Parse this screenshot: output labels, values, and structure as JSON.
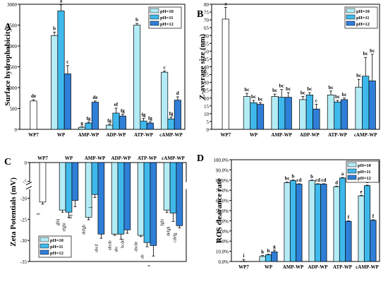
{
  "colors": {
    "ph10": "#b4ecf6",
    "ph11": "#3fb9ec",
    "ph12": "#2f7fd8",
    "wp7": "#ffffff",
    "edge": "#000000"
  },
  "legend": [
    "pH=10",
    "pH=11",
    "pH=12"
  ],
  "chart_data": [
    {
      "panel": "A",
      "type": "bar",
      "ylabel": "Surface hydrophobicity",
      "ylim": [
        0,
        3000
      ],
      "yticks": [
        0,
        500,
        1000,
        1500,
        2000,
        2500,
        3000
      ],
      "categories": [
        "WP7",
        "WP",
        "AMP-WP",
        "ADP-WP",
        "ATP-WP",
        "cAMP-WP"
      ],
      "legend_position": "top-right",
      "series": [
        {
          "name": "pH=10",
          "values": [
            null,
            2250,
            50,
            100,
            2500,
            1370
          ],
          "errors": [
            null,
            80,
            10,
            20,
            40,
            30
          ],
          "labels": [
            null,
            "b",
            "g",
            "fg",
            "b",
            "c"
          ]
        },
        {
          "name": "pH=11",
          "values": [
            null,
            2840,
            150,
            390,
            200,
            250
          ],
          "errors": [
            null,
            150,
            20,
            120,
            60,
            40
          ],
          "labels": [
            null,
            "a",
            "fg",
            "ef",
            "fg",
            "fg"
          ]
        },
        {
          "name": "pH=12",
          "values": [
            null,
            1330,
            650,
            320,
            150,
            700
          ],
          "errors": [
            null,
            200,
            30,
            40,
            30,
            80
          ],
          "labels": [
            null,
            "c",
            "de",
            "fg",
            "fg",
            "d"
          ]
        }
      ],
      "single": {
        "category": "WP7",
        "value": 680,
        "error": 30,
        "label": "de"
      }
    },
    {
      "panel": "B",
      "type": "bar",
      "ylabel": "Z-average size (nm)",
      "ylim": [
        0,
        80
      ],
      "yticks": [
        0,
        5,
        10,
        15,
        20,
        25,
        30,
        35,
        40,
        45,
        50,
        55,
        60,
        65,
        70,
        75,
        80
      ],
      "categories": [
        "WP7",
        "WP",
        "AMP-WP",
        "ADP-WP",
        "ATP-WP",
        "cAMP-WP"
      ],
      "legend_position": "top-right",
      "series": [
        {
          "name": "pH=10",
          "values": [
            null,
            21,
            21,
            19,
            22,
            27
          ],
          "errors": [
            null,
            2,
            1.5,
            2,
            2.5,
            5
          ],
          "labels": [
            null,
            "bc",
            "bc",
            "bc",
            "bc",
            "bc"
          ]
        },
        {
          "name": "pH=11",
          "values": [
            null,
            17,
            20.5,
            22,
            17.5,
            34
          ],
          "errors": [
            null,
            1.5,
            5,
            1.5,
            1,
            12
          ],
          "labels": [
            null,
            "bc",
            "bc",
            "bc",
            "bc",
            "bc"
          ]
        },
        {
          "name": "pH=12",
          "values": [
            null,
            16,
            20.5,
            13,
            19,
            31
          ],
          "errors": [
            null,
            1,
            3,
            3,
            1,
            17
          ],
          "labels": [
            null,
            "bc",
            "bc",
            "c",
            "bc",
            "bc"
          ]
        }
      ],
      "single": {
        "category": "WP7",
        "value": 70.5,
        "error": 7.5,
        "label": "a"
      }
    },
    {
      "panel": "C",
      "type": "bar",
      "ylabel": "Zeta Potentials (mV)",
      "ylim": [
        -35,
        0
      ],
      "yticks": [
        0,
        -5,
        -20,
        -25,
        -30,
        -35
      ],
      "axis_break": [
        -18,
        -5
      ],
      "categories": [
        "WP7",
        "WP",
        "AMP-WP",
        "ADP-WP",
        "ATP-WP",
        "cAMP-WP"
      ],
      "legend_position": "bottom-left",
      "series": [
        {
          "name": "pH=10",
          "values": [
            null,
            -22.8,
            -24.5,
            -28.5,
            -28.8,
            -22.8
          ],
          "errors": [
            null,
            0.5,
            0.6,
            0.3,
            0.3,
            0.6
          ],
          "labels": [
            null,
            "ghij",
            "defgh",
            "abcde",
            "abcde",
            "fghi"
          ]
        },
        {
          "name": "pH=11",
          "values": [
            null,
            -23.3,
            -19.1,
            -28.5,
            -30.5,
            -23.5
          ],
          "errors": [
            null,
            1.2,
            0.7,
            1.2,
            1,
            2
          ],
          "labels": [
            null,
            "efghi",
            "j",
            "abc",
            "ab",
            "defgh"
          ]
        },
        {
          "name": "pH=12",
          "values": [
            null,
            -20.5,
            -28.5,
            -27.5,
            -31.2,
            -26.5
          ],
          "errors": [
            null,
            1.5,
            1,
            0.8,
            2.5,
            0.5
          ],
          "labels": [
            null,
            "hij",
            "abcd",
            "bcdef",
            "a",
            "cdefg"
          ]
        }
      ],
      "single": {
        "category": "WP7",
        "value": -20.9,
        "error": 0.5,
        "label": "ij"
      }
    },
    {
      "panel": "D",
      "type": "bar",
      "ylabel": "ROS clearance rate",
      "ylim": [
        0,
        100
      ],
      "yticks": [
        0,
        10,
        20,
        30,
        40,
        50,
        60,
        70,
        80,
        90,
        100
      ],
      "categories": [
        "WP7",
        "WP",
        "AMP-WP",
        "ADP-WP",
        "ATP-WP",
        "cAMP-WP"
      ],
      "legend_position": "top-right",
      "series": [
        {
          "name": "pH=10",
          "values": [
            null,
            5,
            77.5,
            79.5,
            73.5,
            64.5
          ],
          "errors": [
            null,
            0.8,
            0.5,
            0.5,
            0.6,
            0.6
          ],
          "labels": [
            null,
            "h",
            "bc",
            "b",
            "d",
            "e"
          ]
        },
        {
          "name": "pH=11",
          "values": [
            null,
            6.5,
            79.5,
            76,
            82,
            74.5
          ],
          "errors": [
            null,
            0.6,
            0.6,
            0.4,
            0.5,
            0.5
          ],
          "labels": [
            null,
            "h",
            "b",
            "cd",
            "a",
            "d"
          ]
        },
        {
          "name": "pH=12",
          "values": [
            null,
            9.5,
            76,
            76,
            39.5,
            40.5
          ],
          "errors": [
            null,
            1.5,
            0.4,
            0.4,
            0.5,
            0.5
          ],
          "labels": [
            null,
            "g",
            "cd",
            "cd",
            "f",
            "f"
          ]
        }
      ],
      "single": {
        "category": "WP7",
        "value": 0.2,
        "error": 1.8,
        "label": "i"
      }
    }
  ]
}
